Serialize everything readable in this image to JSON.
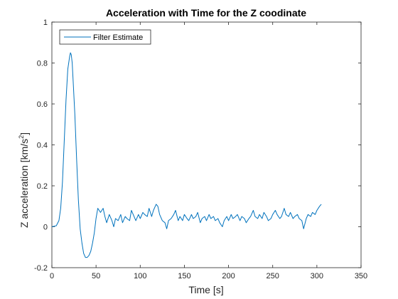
{
  "chart_data": {
    "type": "line",
    "title": "Acceleration with Time for the Z coodinate",
    "xlabel": "Time [s]",
    "ylabel_main": "Z acceleration [km/s",
    "ylabel_sup": "2",
    "ylabel_tail": "]",
    "xlim": [
      0,
      350
    ],
    "ylim": [
      -0.2,
      1.0
    ],
    "xticks": [
      0,
      50,
      100,
      150,
      200,
      250,
      300,
      350
    ],
    "xtick_labels": [
      "0",
      "50",
      "100",
      "150",
      "200",
      "250",
      "300",
      "350"
    ],
    "yticks": [
      -0.2,
      0,
      0.2,
      0.4,
      0.6,
      0.8,
      1
    ],
    "ytick_labels": [
      "-0.2",
      "0",
      "0.2",
      "0.4",
      "0.6",
      "0.8",
      "1"
    ],
    "grid": false,
    "legend_location": "top-left",
    "series": [
      {
        "name": "Filter Estimate",
        "color": "#0072bd",
        "x": [
          0,
          5,
          8,
          10,
          12,
          14,
          16,
          18,
          20,
          21,
          22,
          23,
          24,
          26,
          28,
          30,
          32,
          34,
          36,
          38,
          40,
          42,
          44,
          46,
          48,
          50,
          52,
          55,
          58,
          60,
          62,
          65,
          68,
          70,
          72,
          75,
          78,
          80,
          83,
          85,
          88,
          90,
          93,
          95,
          98,
          100,
          103,
          105,
          108,
          110,
          113,
          115,
          118,
          120,
          122,
          125,
          128,
          130,
          132,
          135,
          138,
          140,
          143,
          145,
          148,
          150,
          153,
          155,
          158,
          160,
          163,
          165,
          168,
          170,
          173,
          175,
          178,
          180,
          183,
          185,
          188,
          190,
          193,
          195,
          198,
          200,
          203,
          205,
          208,
          210,
          213,
          215,
          218,
          220,
          223,
          225,
          228,
          230,
          233,
          235,
          238,
          240,
          243,
          245,
          248,
          250,
          253,
          255,
          258,
          260,
          263,
          265,
          268,
          270,
          273,
          275,
          278,
          280,
          283,
          285,
          288,
          290,
          293,
          295,
          298,
          300,
          303,
          305
        ],
        "y": [
          0,
          0.005,
          0.03,
          0.09,
          0.22,
          0.42,
          0.62,
          0.77,
          0.83,
          0.85,
          0.84,
          0.8,
          0.72,
          0.55,
          0.33,
          0.13,
          -0.01,
          -0.08,
          -0.13,
          -0.15,
          -0.15,
          -0.14,
          -0.12,
          -0.08,
          -0.03,
          0.04,
          0.09,
          0.07,
          0.09,
          0.05,
          0.02,
          0.06,
          0.03,
          0.0,
          0.04,
          0.03,
          0.06,
          0.02,
          0.05,
          0.04,
          0.03,
          0.08,
          0.05,
          0.03,
          0.06,
          0.04,
          0.07,
          0.06,
          0.05,
          0.09,
          0.05,
          0.08,
          0.11,
          0.1,
          0.06,
          0.03,
          0.02,
          -0.01,
          0.03,
          0.04,
          0.06,
          0.08,
          0.03,
          0.05,
          0.03,
          0.06,
          0.04,
          0.03,
          0.06,
          0.04,
          0.05,
          0.07,
          0.02,
          0.04,
          0.05,
          0.03,
          0.06,
          0.04,
          0.05,
          0.03,
          0.04,
          0.02,
          0.0,
          0.03,
          0.05,
          0.03,
          0.06,
          0.04,
          0.05,
          0.06,
          0.03,
          0.05,
          0.04,
          0.02,
          0.04,
          0.05,
          0.08,
          0.05,
          0.04,
          0.06,
          0.04,
          0.07,
          0.05,
          0.03,
          0.04,
          0.06,
          0.08,
          0.06,
          0.04,
          0.05,
          0.09,
          0.06,
          0.05,
          0.07,
          0.04,
          0.05,
          0.06,
          0.04,
          0.03,
          -0.01,
          0.04,
          0.06,
          0.05,
          0.07,
          0.06,
          0.08,
          0.1,
          0.11
        ]
      }
    ]
  }
}
